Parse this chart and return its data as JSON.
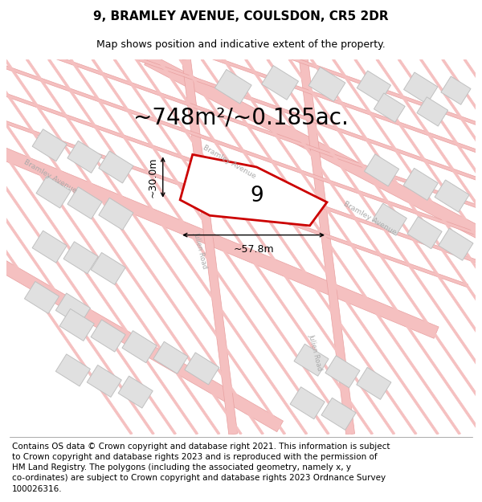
{
  "title": "9, BRAMLEY AVENUE, COULSDON, CR5 2DR",
  "subtitle": "Map shows position and indicative extent of the property.",
  "area_text": "~748m²/~0.185ac.",
  "number_label": "9",
  "dim_width": "~57.8m",
  "dim_height": "~30.0m",
  "footer": "Contains OS data © Crown copyright and database right 2021. This information is subject\nto Crown copyright and database rights 2023 and is reproduced with the permission of\nHM Land Registry. The polygons (including the associated geometry, namely x, y\nco-ordinates) are subject to Crown copyright and database rights 2023 Ordnance Survey\n100026316.",
  "bg_color": "#ffffff",
  "map_bg": "#ffffff",
  "road_color": "#f5c0c0",
  "road_edge_color": "#e8a0a0",
  "building_color": "#e0e0e0",
  "building_edge": "#c0c0c0",
  "highlight_color": "#cc0000",
  "title_fontsize": 11,
  "subtitle_fontsize": 9,
  "area_fontsize": 20,
  "footer_fontsize": 7.5,
  "road_label_color": "#aaaaaa",
  "dim_fontsize": 9
}
